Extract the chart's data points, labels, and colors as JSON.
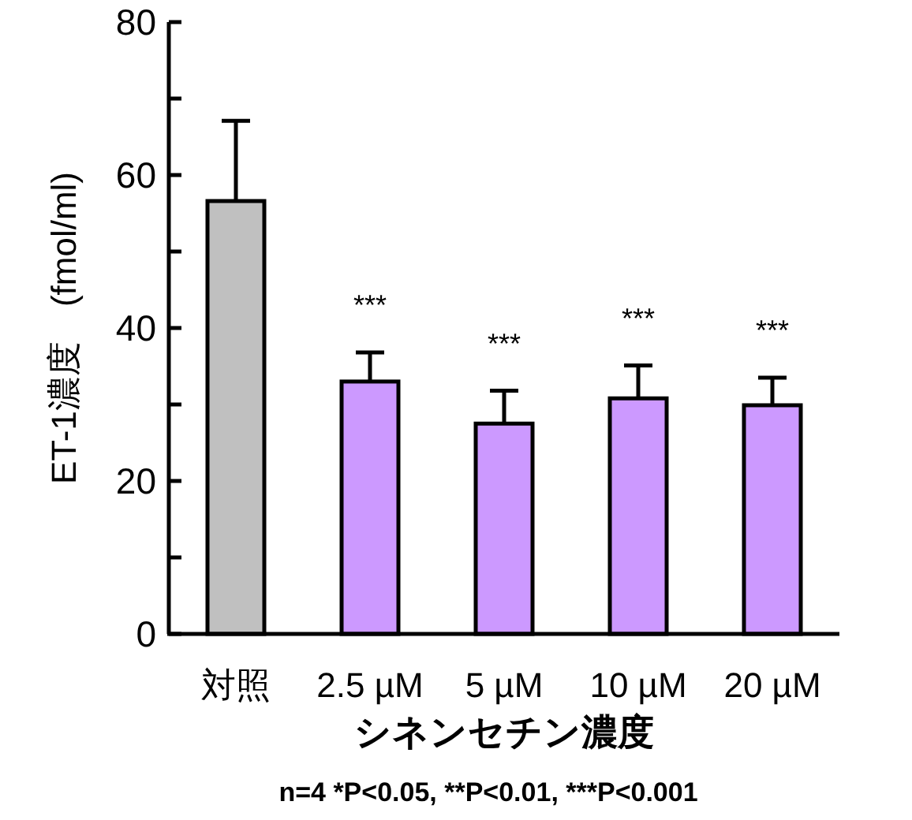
{
  "chart_data": {
    "type": "bar",
    "ylabel": "ET-1濃度　(fmol/ml)",
    "xlabel": "シネンセチン濃度",
    "categories": [
      "対照",
      "2.5 µM",
      "5 µM",
      "10 µM",
      "20 µM"
    ],
    "values": [
      56.6,
      33.0,
      27.5,
      30.8,
      29.9
    ],
    "colors": [
      "#c0c0c0",
      "#cc99ff",
      "#cc99ff",
      "#cc99ff",
      "#cc99ff"
    ],
    "errors": [
      [
        56.6,
        67.1
      ],
      [
        33.0,
        36.8
      ],
      [
        27.5,
        31.8
      ],
      [
        30.8,
        35.1
      ],
      [
        29.9,
        33.5
      ]
    ],
    "ylim": [
      0,
      80
    ],
    "yticks": [
      0,
      {
        "value": 10,
        "label": null
      },
      20,
      {
        "value": 30,
        "label": null
      },
      40,
      {
        "value": 50,
        "label": null
      },
      60,
      {
        "value": 70,
        "label": null
      },
      80
    ],
    "value_labels": [
      null,
      "***",
      "***",
      "***",
      "***"
    ],
    "grid": false,
    "annotations": [
      "n=4  *P<0.05, **P<0.01, ***P<0.001"
    ]
  }
}
